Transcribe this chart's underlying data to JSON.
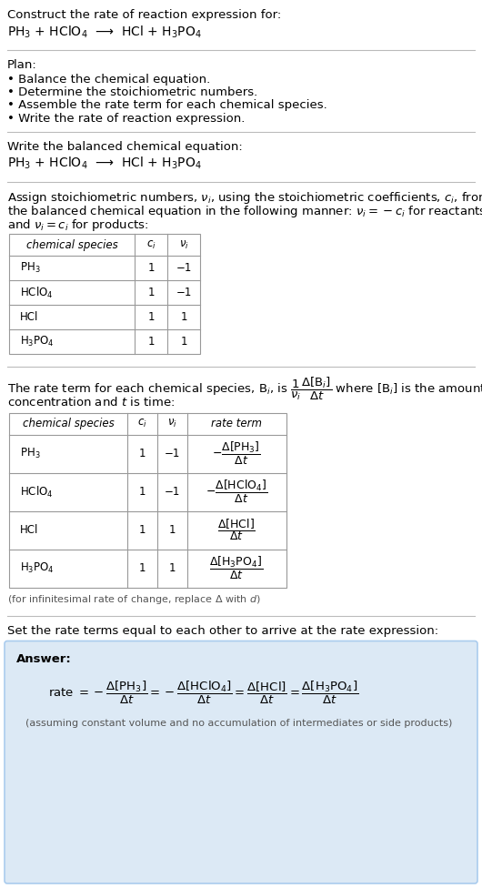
{
  "bg_color": "#ffffff",
  "section1_title": "Construct the rate of reaction expression for:",
  "section1_eq": "PH$_3$ + HClO$_4$  ⟶  HCl + H$_3$PO$_4$",
  "section2_title": "Plan:",
  "section2_bullets": [
    "• Balance the chemical equation.",
    "• Determine the stoichiometric numbers.",
    "• Assemble the rate term for each chemical species.",
    "• Write the rate of reaction expression."
  ],
  "section3_title": "Write the balanced chemical equation:",
  "section3_eq": "PH$_3$ + HClO$_4$  ⟶  HCl + H$_3$PO$_4$",
  "section4_line1": "Assign stoichiometric numbers, $\\nu_i$, using the stoichiometric coefficients, $c_i$, from",
  "section4_line2": "the balanced chemical equation in the following manner: $\\nu_i = -c_i$ for reactants",
  "section4_line3": "and $\\nu_i = c_i$ for products:",
  "table1_headers": [
    "chemical species",
    "$c_i$",
    "$\\nu_i$"
  ],
  "table1_rows": [
    [
      "PH$_3$",
      "1",
      "−1"
    ],
    [
      "HClO$_4$",
      "1",
      "−1"
    ],
    [
      "HCl",
      "1",
      "1"
    ],
    [
      "H$_3$PO$_4$",
      "1",
      "1"
    ]
  ],
  "section5_line1": "The rate term for each chemical species, B$_i$, is $\\dfrac{1}{\\nu_i}\\dfrac{\\Delta[\\mathrm{B}_i]}{\\Delta t}$ where [B$_i$] is the amount",
  "section5_line2": "concentration and $t$ is time:",
  "table2_headers": [
    "chemical species",
    "$c_i$",
    "$\\nu_i$",
    "rate term"
  ],
  "table2_rows": [
    [
      "PH$_3$",
      "1",
      "−1",
      "$-\\dfrac{\\Delta[\\mathrm{PH_3}]}{\\Delta t}$"
    ],
    [
      "HClO$_4$",
      "1",
      "−1",
      "$-\\dfrac{\\Delta[\\mathrm{HClO_4}]}{\\Delta t}$"
    ],
    [
      "HCl",
      "1",
      "1",
      "$\\dfrac{\\Delta[\\mathrm{HCl}]}{\\Delta t}$"
    ],
    [
      "H$_3$PO$_4$",
      "1",
      "1",
      "$\\dfrac{\\Delta[\\mathrm{H_3PO_4}]}{\\Delta t}$"
    ]
  ],
  "section5_note": "(for infinitesimal rate of change, replace Δ with $d$)",
  "section6_title": "Set the rate terms equal to each other to arrive at the rate expression:",
  "answer_box_bg": "#dce9f5",
  "answer_box_border": "#aaccee",
  "answer_label": "Answer:",
  "answer_eq": "rate $= -\\dfrac{\\Delta[\\mathrm{PH_3}]}{\\Delta t} = -\\dfrac{\\Delta[\\mathrm{HClO_4}]}{\\Delta t} = \\dfrac{\\Delta[\\mathrm{HCl}]}{\\Delta t} = \\dfrac{\\Delta[\\mathrm{H_3PO_4}]}{\\Delta t}$",
  "answer_note": "(assuming constant volume and no accumulation of intermediates or side products)",
  "hline_color": "#bbbbbb",
  "table_border_color": "#999999",
  "text_color": "#000000",
  "note_color": "#555555"
}
